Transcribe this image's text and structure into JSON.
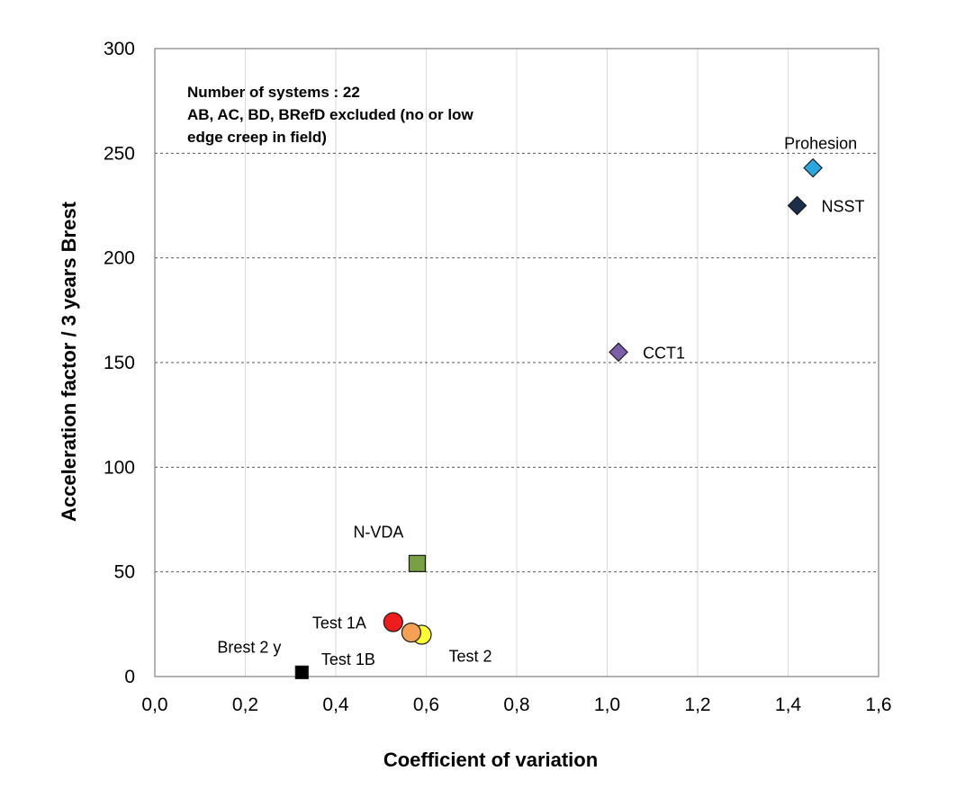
{
  "chart_data": {
    "type": "scatter",
    "xlabel": "Coefficient of variation",
    "ylabel": "Acceleration factor / 3 years  Brest",
    "xlim": [
      0,
      1.6
    ],
    "ylim": [
      0,
      300
    ],
    "x_ticks": [
      "0,0",
      "0,2",
      "0,4",
      "0,6",
      "0,8",
      "1,0",
      "1,2",
      "1,4",
      "1,6"
    ],
    "y_ticks": [
      "0",
      "50",
      "100",
      "150",
      "200",
      "250",
      "300"
    ],
    "grid": {
      "horizontal": "dashed",
      "vertical": "solid-light"
    },
    "annotation_lines": [
      "Number of systems  :  22",
      "AB, AC, BD,  BRefD excluded (no or low",
      "edge creep in field)"
    ],
    "points": [
      {
        "label": "Prohesion",
        "x": 1.455,
        "y": 243,
        "marker": "diamond",
        "color": "#29a8e0",
        "label_color": "#000000"
      },
      {
        "label": "NSST",
        "x": 1.42,
        "y": 225,
        "marker": "diamond",
        "color": "#1c2e4a",
        "label_color": "#000000"
      },
      {
        "label": "CCT1",
        "x": 1.025,
        "y": 155,
        "marker": "diamond",
        "color": "#7b5ea7",
        "label_color": "#000000"
      },
      {
        "label": "N-VDA",
        "x": 0.58,
        "y": 54,
        "marker": "square",
        "color": "#77a045",
        "label_color": "#000000"
      },
      {
        "label": "Test 1A",
        "x": 0.527,
        "y": 26,
        "marker": "circle",
        "color": "#ee1c1c",
        "label_color": "#e02020"
      },
      {
        "label": "Test 1B",
        "x": 0.567,
        "y": 21,
        "marker": "circle",
        "color": "#f5a052",
        "label_color": "#000000"
      },
      {
        "label": "Test 2",
        "x": 0.59,
        "y": 20,
        "marker": "circle",
        "color": "#ffff33",
        "label_color": "#000000"
      },
      {
        "label": "Brest 2 y",
        "x": 0.325,
        "y": 2,
        "marker": "square",
        "color": "#000000",
        "label_color": "#000000"
      }
    ]
  }
}
